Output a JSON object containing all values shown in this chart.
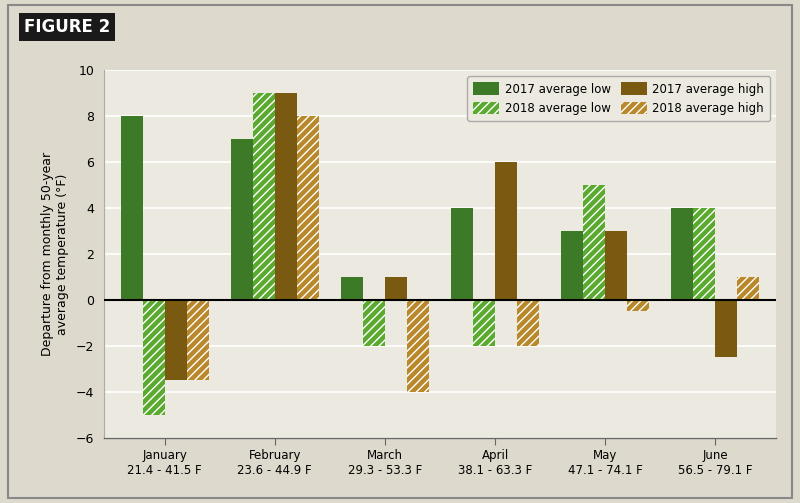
{
  "months": [
    "January\n21.4 - 41.5 F",
    "February\n23.6 - 44.9 F",
    "March\n29.3 - 53.3 F",
    "April\n38.1 - 63.3 F",
    "May\n47.1 - 74.1 F",
    "June\n56.5 - 79.1 F"
  ],
  "low_2017": [
    8,
    7,
    1,
    4,
    3,
    4
  ],
  "low_2018": [
    -5,
    9,
    -2,
    -2,
    5,
    4
  ],
  "high_2017": [
    -3.5,
    9,
    1,
    6,
    3,
    -2.5
  ],
  "high_2018": [
    -3.5,
    8,
    -4,
    -2,
    -0.5,
    1
  ],
  "color_low_2017": "#3d7a28",
  "color_low_2018": "#5aaa30",
  "color_high_2017": "#7a5a10",
  "color_high_2018": "#b8882a",
  "ylabel": "Departure from monthly 50-year\naverage temperature (°F)",
  "ylim": [
    -6,
    10
  ],
  "yticks": [
    -6,
    -4,
    -2,
    0,
    2,
    4,
    6,
    8,
    10
  ],
  "legend_labels_row1": [
    "2017 average low",
    "2018 average low"
  ],
  "legend_labels_row2": [
    "2017 average high",
    "2018 average high"
  ],
  "figure_label": "FIGURE 2",
  "bg_color": "#ddd9cc",
  "plot_bg_color": "#eceae0",
  "bar_width": 0.2,
  "outer_border_color": "#aaaaaa"
}
